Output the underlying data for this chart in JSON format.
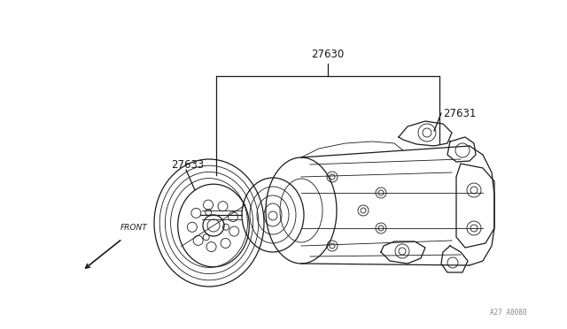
{
  "bg_color": "#ffffff",
  "line_color": "#1a1a1a",
  "label_color": "#1a1a1a",
  "watermark": "A27 A0080",
  "label_27630": "27630",
  "label_27631": "27631",
  "label_27633": "27633",
  "label_front": "FRONT",
  "fig_w": 6.4,
  "fig_h": 3.72,
  "dpi": 100
}
